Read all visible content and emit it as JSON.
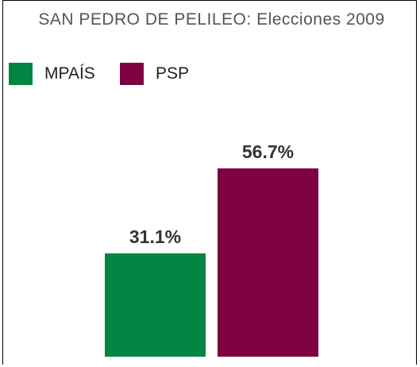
{
  "chart_data": {
    "type": "bar",
    "title": "SAN PEDRO DE PELILEO: Elecciones 2009",
    "series": [
      {
        "name": "MPAÍS",
        "color": "#008542",
        "values": [
          31.1
        ],
        "value_labels": [
          "31.1%"
        ]
      },
      {
        "name": "PSP",
        "color": "#7e0040",
        "values": [
          56.7
        ],
        "value_labels": [
          "56.7%"
        ]
      }
    ]
  }
}
